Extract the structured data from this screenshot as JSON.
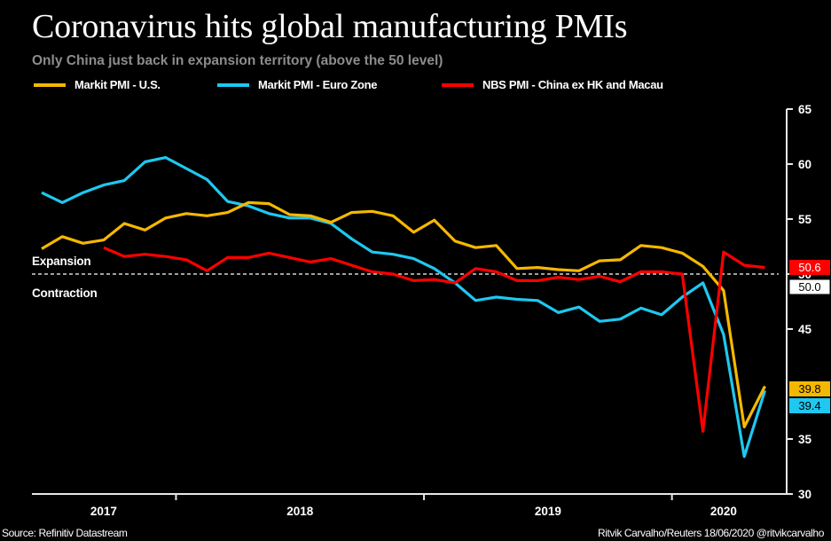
{
  "colors": {
    "background": "#000000",
    "us": "#f5b800",
    "euro": "#1ec8f0",
    "china": "#ff0000",
    "axis": "#ffffff"
  },
  "chart_data": {
    "type": "line",
    "title": "Coronavirus hits global manufacturing PMIs",
    "subtitle": "Only China just back in expansion territory (above the 50 level)",
    "xlabel": "",
    "ylabel": "",
    "ylim": [
      30,
      65
    ],
    "yticks": [
      "65",
      "60",
      "55",
      "50",
      "45",
      "35",
      "30"
    ],
    "ytick_values": [
      65,
      60,
      55,
      50,
      45,
      35,
      30
    ],
    "x_start": "2017-06",
    "x_end": "2020-05",
    "year_labels": [
      {
        "label": "2017",
        "month_center": 3
      },
      {
        "label": "2018",
        "month_center": 12.5
      },
      {
        "label": "2019",
        "month_center": 24.5
      },
      {
        "label": "2020",
        "month_center": 33
      }
    ],
    "year_boundaries": [
      6.5,
      18.5,
      30.5
    ],
    "reference_line": {
      "value": 50,
      "upper_label": "Expansion",
      "lower_label": "Contraction"
    },
    "legend_position": "top",
    "series": [
      {
        "name": "Markit PMI - U.S.",
        "color_key": "us",
        "start_index": 0,
        "values": [
          52.3,
          53.4,
          52.8,
          53.1,
          54.6,
          54.0,
          55.1,
          55.5,
          55.3,
          55.6,
          56.5,
          56.4,
          55.4,
          55.3,
          54.7,
          55.6,
          55.7,
          55.3,
          53.8,
          54.9,
          53.0,
          52.4,
          52.6,
          50.5,
          50.6,
          50.4,
          50.3,
          51.2,
          51.3,
          52.6,
          52.4,
          51.9,
          50.7,
          48.5,
          36.1,
          39.8
        ],
        "last_label": "39.8"
      },
      {
        "name": "Markit PMI - Euro Zone",
        "color_key": "euro",
        "start_index": 0,
        "values": [
          57.4,
          56.5,
          57.4,
          58.1,
          58.5,
          60.2,
          60.6,
          59.6,
          58.6,
          56.6,
          56.2,
          55.5,
          55.1,
          55.1,
          54.6,
          53.2,
          52.0,
          51.8,
          51.4,
          50.5,
          49.2,
          47.6,
          47.9,
          47.7,
          47.6,
          46.5,
          47.0,
          45.7,
          45.9,
          46.9,
          46.3,
          47.9,
          49.2,
          44.5,
          33.4,
          39.4
        ],
        "last_label": "39.4"
      },
      {
        "name": "NBS PMI - China ex HK and Macau",
        "color_key": "china",
        "start_index": 3,
        "values": [
          52.4,
          51.6,
          51.8,
          51.6,
          51.3,
          50.3,
          51.5,
          51.5,
          51.9,
          51.5,
          51.1,
          51.4,
          50.8,
          50.2,
          50.0,
          49.4,
          49.5,
          49.2,
          50.5,
          50.2,
          49.4,
          49.4,
          49.7,
          49.5,
          49.8,
          49.3,
          50.2,
          50.2,
          50.0,
          35.7,
          52.0,
          50.8,
          50.6
        ],
        "last_label": "50.6"
      }
    ],
    "reference_label": "50.0"
  },
  "footer": {
    "source": "Source: Refinitiv Datastream",
    "credit": "Ritvik Carvalho/Reuters 18/06/2020 @ritvikcarvalho"
  }
}
